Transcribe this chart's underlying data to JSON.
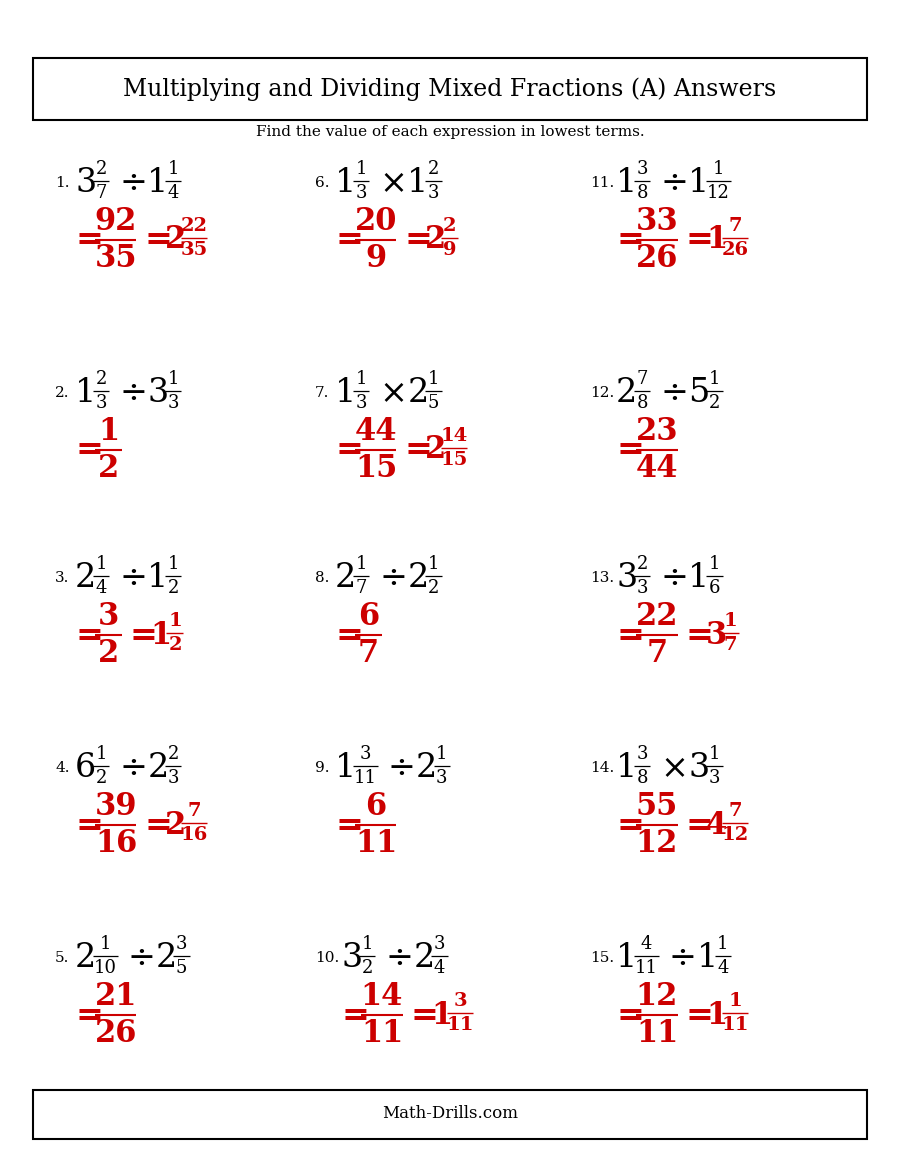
{
  "title": "Multiplying and Dividing Mixed Fractions (A) Answers",
  "subtitle": "Find the value of each expression in lowest terms.",
  "footer": "Math-Drills.com",
  "bg_color": "#ffffff",
  "black": "#000000",
  "red": "#cc0000",
  "problems": [
    {
      "num": "1.",
      "question": [
        "3",
        "2",
        "7",
        "÷",
        "1",
        "1",
        "4"
      ],
      "answer_frac": [
        "92",
        "35"
      ],
      "answer_mixed": [
        "2",
        "22",
        "35"
      ]
    },
    {
      "num": "2.",
      "question": [
        "1",
        "2",
        "3",
        "÷",
        "3",
        "1",
        "3"
      ],
      "answer_frac": [
        "1",
        "2"
      ],
      "answer_mixed": []
    },
    {
      "num": "3.",
      "question": [
        "2",
        "1",
        "4",
        "÷",
        "1",
        "1",
        "2"
      ],
      "answer_frac": [
        "3",
        "2"
      ],
      "answer_mixed": [
        "1",
        "1",
        "2"
      ]
    },
    {
      "num": "4.",
      "question": [
        "6",
        "1",
        "2",
        "÷",
        "2",
        "2",
        "3"
      ],
      "answer_frac": [
        "39",
        "16"
      ],
      "answer_mixed": [
        "2",
        "7",
        "16"
      ]
    },
    {
      "num": "5.",
      "question": [
        "2",
        "1",
        "10",
        "÷",
        "2",
        "3",
        "5"
      ],
      "answer_frac": [
        "21",
        "26"
      ],
      "answer_mixed": []
    },
    {
      "num": "6.",
      "question": [
        "1",
        "1",
        "3",
        "×",
        "1",
        "2",
        "3"
      ],
      "answer_frac": [
        "20",
        "9"
      ],
      "answer_mixed": [
        "2",
        "2",
        "9"
      ]
    },
    {
      "num": "7.",
      "question": [
        "1",
        "1",
        "3",
        "×",
        "2",
        "1",
        "5"
      ],
      "answer_frac": [
        "44",
        "15"
      ],
      "answer_mixed": [
        "2",
        "14",
        "15"
      ]
    },
    {
      "num": "8.",
      "question": [
        "2",
        "1",
        "7",
        "÷",
        "2",
        "1",
        "2"
      ],
      "answer_frac": [
        "6",
        "7"
      ],
      "answer_mixed": []
    },
    {
      "num": "9.",
      "question": [
        "1",
        "3",
        "11",
        "÷",
        "2",
        "1",
        "3"
      ],
      "answer_frac": [
        "6",
        "11"
      ],
      "answer_mixed": []
    },
    {
      "num": "10.",
      "question": [
        "3",
        "1",
        "2",
        "÷",
        "2",
        "3",
        "4"
      ],
      "answer_frac": [
        "14",
        "11"
      ],
      "answer_mixed": [
        "1",
        "3",
        "11"
      ]
    },
    {
      "num": "11.",
      "question": [
        "1",
        "3",
        "8",
        "÷",
        "1",
        "1",
        "12"
      ],
      "answer_frac": [
        "33",
        "26"
      ],
      "answer_mixed": [
        "1",
        "7",
        "26"
      ]
    },
    {
      "num": "12.",
      "question": [
        "2",
        "7",
        "8",
        "÷",
        "5",
        "1",
        "2"
      ],
      "answer_frac": [
        "23",
        "44"
      ],
      "answer_mixed": []
    },
    {
      "num": "13.",
      "question": [
        "3",
        "2",
        "3",
        "÷",
        "1",
        "1",
        "6"
      ],
      "answer_frac": [
        "22",
        "7"
      ],
      "answer_mixed": [
        "3",
        "1",
        "7"
      ]
    },
    {
      "num": "14.",
      "question": [
        "1",
        "3",
        "8",
        "×",
        "3",
        "1",
        "3"
      ],
      "answer_frac": [
        "55",
        "12"
      ],
      "answer_mixed": [
        "4",
        "7",
        "12"
      ]
    },
    {
      "num": "15.",
      "question": [
        "1",
        "4",
        "11",
        "÷",
        "1",
        "1",
        "4"
      ],
      "answer_frac": [
        "12",
        "11"
      ],
      "answer_mixed": [
        "1",
        "1",
        "11"
      ]
    }
  ]
}
